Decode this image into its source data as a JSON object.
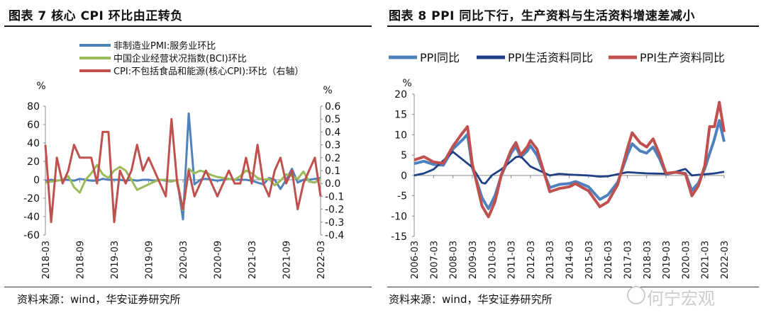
{
  "left_title": "图表 7  核心 CPI 环比由正转负",
  "right_title": "图表 8 PPI 同比下行，生产资料与生活资料增速差减小",
  "left_source": "资料来源：wind，华安证券研究所",
  "right_source": "资料来源：wind，华安证券研究所",
  "watermark": "何宁宏观",
  "chart_data": [
    {
      "type": "line",
      "title": "图表 7  核心 CPI 环比由正转负",
      "left_unit": "%",
      "right_unit": "%",
      "ylim": [
        -60,
        80
      ],
      "y_ticks": [
        -60,
        -40,
        -20,
        0,
        20,
        40,
        60,
        80
      ],
      "y2lim": [
        -0.4,
        0.6
      ],
      "y2_ticks": [
        -0.4,
        -0.3,
        -0.2,
        -0.1,
        0.0,
        0.1,
        0.2,
        0.3,
        0.4,
        0.5,
        0.6
      ],
      "x_tick_labels": [
        "2018-03",
        "2018-09",
        "2019-03",
        "2019-09",
        "2020-03",
        "2020-09",
        "2021-03",
        "2021-09",
        "2022-03"
      ],
      "x_tick_index": [
        0,
        6,
        12,
        18,
        24,
        30,
        36,
        42,
        48
      ],
      "legend_position": "top-left",
      "series": [
        {
          "name": "非制造业PMI:服务业环比",
          "axis": "left",
          "color": "#4f81bd",
          "values": [
            -1,
            0,
            -1,
            0,
            0,
            -1,
            1,
            0,
            -1,
            -1,
            1,
            0,
            0,
            0,
            -1,
            0,
            -1,
            0,
            0,
            -1,
            0,
            -1,
            -2,
            0,
            -43,
            72,
            -5,
            0,
            1,
            0,
            -1,
            0,
            1,
            0,
            0,
            0,
            -1,
            -3,
            -5,
            2,
            0,
            -10,
            0,
            12,
            -3,
            0,
            0,
            1,
            2
          ]
        },
        {
          "name": "中国企业经营状况指数(BCI)环比",
          "axis": "left",
          "color": "#9bbb59",
          "values": [
            -3,
            -2,
            -1,
            0,
            4,
            -8,
            -14,
            0,
            7,
            16,
            6,
            2,
            10,
            14,
            10,
            0,
            -11,
            -8,
            -5,
            -2,
            0,
            0,
            -2,
            0,
            -33,
            12,
            7,
            10,
            8,
            5,
            3,
            2,
            1,
            0,
            4,
            10,
            7,
            2,
            0,
            1,
            -6,
            -1,
            6,
            4,
            1,
            9,
            -2,
            -3,
            1
          ]
        },
        {
          "name": "CPI:不包括食品和能源(核心CPI):环比（右轴）",
          "axis": "right",
          "color": "#c0504d",
          "values": [
            0.3,
            -0.3,
            0.2,
            0.0,
            0.1,
            0.3,
            0.2,
            0.2,
            0.2,
            0.0,
            0.4,
            0.4,
            -0.3,
            0.1,
            0.0,
            0.1,
            0.3,
            0.1,
            0.2,
            0.1,
            0.0,
            -0.1,
            0.5,
            0.0,
            -0.2,
            0.1,
            -0.1,
            0.0,
            0.1,
            0.0,
            -0.1,
            0.0,
            0.1,
            0.0,
            0.0,
            0.2,
            0.0,
            0.3,
            0.0,
            -0.1,
            0.1,
            0.2,
            0.0,
            0.1,
            -0.2,
            0.0,
            0.1,
            0.2,
            -0.1
          ]
        }
      ]
    },
    {
      "type": "line",
      "title": "图表 8 PPI 同比下行，生产资料与生活资料增速差减小",
      "left_unit": "%",
      "ylim": [
        -15,
        20
      ],
      "y_ticks": [
        -15,
        -10,
        -5,
        0,
        5,
        10,
        15,
        20
      ],
      "x_tick_labels": [
        "2006-03",
        "2007-03",
        "2008-03",
        "2009-03",
        "2010-03",
        "2011-03",
        "2012-03",
        "2013-03",
        "2014-03",
        "2015-03",
        "2016-03",
        "2017-03",
        "2018-03",
        "2019-03",
        "2020-03",
        "2021-03",
        "2022-03"
      ],
      "x_tick_index": [
        0,
        12,
        24,
        36,
        48,
        60,
        72,
        84,
        96,
        108,
        120,
        132,
        144,
        156,
        168,
        180,
        192
      ],
      "legend_position": "top",
      "series": [
        {
          "name": "PPI同比",
          "color": "#4f81bd",
          "keypoints": [
            [
              0,
              2.9
            ],
            [
              6,
              3.5
            ],
            [
              12,
              2.7
            ],
            [
              18,
              2.5
            ],
            [
              24,
              6.5
            ],
            [
              30,
              8.8
            ],
            [
              33,
              10.1
            ],
            [
              36,
              2.0
            ],
            [
              42,
              -5.5
            ],
            [
              46,
              -8.2
            ],
            [
              50,
              -5.0
            ],
            [
              54,
              0.0
            ],
            [
              60,
              5.5
            ],
            [
              63,
              7.1
            ],
            [
              66,
              4.5
            ],
            [
              70,
              6.0
            ],
            [
              72,
              7.3
            ],
            [
              76,
              5.0
            ],
            [
              81,
              0.0
            ],
            [
              84,
              -3.0
            ],
            [
              90,
              -2.2
            ],
            [
              96,
              -2.0
            ],
            [
              100,
              -1.5
            ],
            [
              102,
              -1.8
            ],
            [
              108,
              -2.8
            ],
            [
              115,
              -5.9
            ],
            [
              120,
              -4.8
            ],
            [
              126,
              -1.7
            ],
            [
              132,
              5.0
            ],
            [
              135,
              7.8
            ],
            [
              140,
              6.0
            ],
            [
              144,
              5.5
            ],
            [
              148,
              7.0
            ],
            [
              152,
              4.1
            ],
            [
              156,
              0.3
            ],
            [
              162,
              0.8
            ],
            [
              168,
              0.5
            ],
            [
              172,
              -3.7
            ],
            [
              176,
              -1.9
            ],
            [
              180,
              1.7
            ],
            [
              186,
              9.0
            ],
            [
              189,
              13.5
            ],
            [
              192,
              8.3
            ]
          ]
        },
        {
          "name": "PPI生活资料同比",
          "color": "#1f3f87",
          "keypoints": [
            [
              0,
              0.0
            ],
            [
              6,
              0.5
            ],
            [
              12,
              1.5
            ],
            [
              24,
              5.8
            ],
            [
              36,
              2.0
            ],
            [
              42,
              -1.8
            ],
            [
              44,
              -2.0
            ],
            [
              48,
              0.0
            ],
            [
              54,
              1.5
            ],
            [
              63,
              4.5
            ],
            [
              66,
              4.7
            ],
            [
              72,
              2.2
            ],
            [
              84,
              0.0
            ],
            [
              90,
              0.4
            ],
            [
              96,
              0.2
            ],
            [
              108,
              0.0
            ],
            [
              115,
              -0.3
            ],
            [
              120,
              -0.2
            ],
            [
              132,
              0.8
            ],
            [
              144,
              0.5
            ],
            [
              156,
              0.4
            ],
            [
              162,
              0.9
            ],
            [
              168,
              1.6
            ],
            [
              172,
              0.0
            ],
            [
              180,
              0.3
            ],
            [
              186,
              0.5
            ],
            [
              192,
              0.9
            ]
          ]
        },
        {
          "name": "PPI生产资料同比",
          "color": "#c0504d",
          "keypoints": [
            [
              0,
              3.8
            ],
            [
              6,
              4.6
            ],
            [
              12,
              3.3
            ],
            [
              18,
              3.0
            ],
            [
              24,
              7.2
            ],
            [
              30,
              10.5
            ],
            [
              33,
              12.0
            ],
            [
              36,
              2.8
            ],
            [
              42,
              -7.5
            ],
            [
              46,
              -10.2
            ],
            [
              50,
              -6.5
            ],
            [
              54,
              0.2
            ],
            [
              60,
              6.2
            ],
            [
              63,
              8.1
            ],
            [
              66,
              5.0
            ],
            [
              70,
              7.0
            ],
            [
              72,
              8.6
            ],
            [
              76,
              6.5
            ],
            [
              81,
              0.0
            ],
            [
              84,
              -4.0
            ],
            [
              90,
              -3.2
            ],
            [
              96,
              -2.8
            ],
            [
              100,
              -2.0
            ],
            [
              102,
              -2.5
            ],
            [
              108,
              -3.8
            ],
            [
              115,
              -7.7
            ],
            [
              120,
              -6.5
            ],
            [
              126,
              -2.3
            ],
            [
              132,
              6.5
            ],
            [
              135,
              10.5
            ],
            [
              140,
              8.0
            ],
            [
              144,
              7.0
            ],
            [
              148,
              9.0
            ],
            [
              152,
              5.2
            ],
            [
              156,
              0.5
            ],
            [
              162,
              0.8
            ],
            [
              168,
              0.4
            ],
            [
              172,
              -5.0
            ],
            [
              176,
              -2.6
            ],
            [
              180,
              2.4
            ],
            [
              183,
              12.0
            ],
            [
              186,
              12.0
            ],
            [
              189,
              18.0
            ],
            [
              192,
              10.7
            ]
          ]
        }
      ]
    }
  ]
}
